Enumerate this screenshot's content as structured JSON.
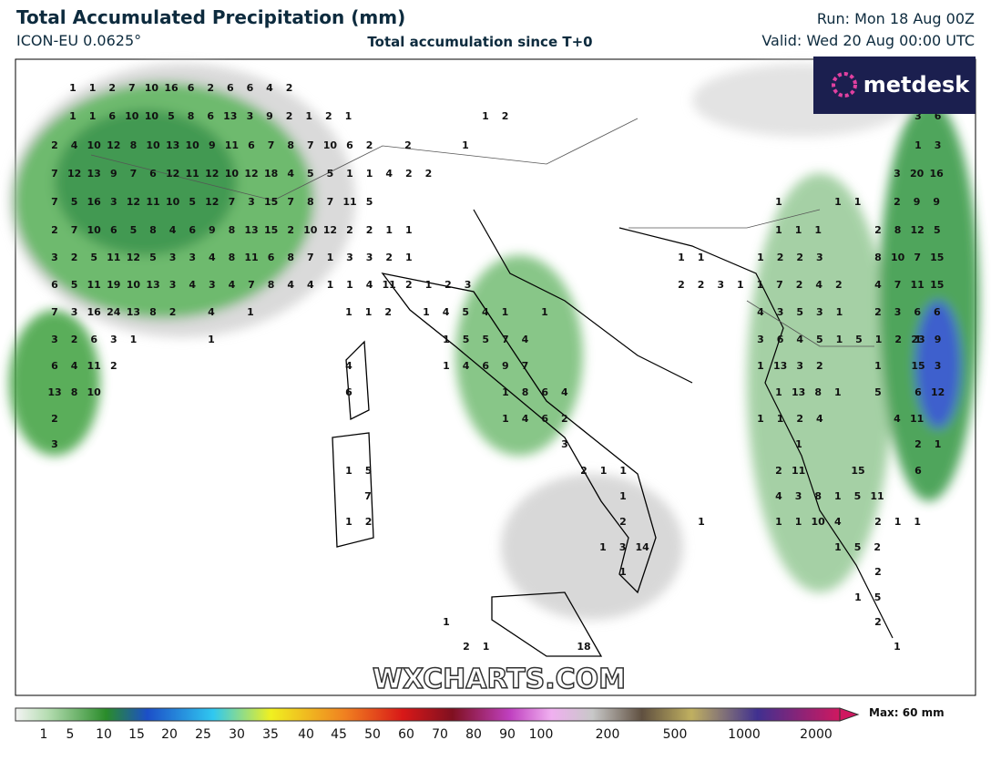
{
  "header": {
    "title": "Total Accumulated Precipitation (mm)",
    "model": "ICON-EU 0.0625°",
    "subtitle": "Total accumulation since T+0",
    "run": "Run: Mon 18 Aug 00Z",
    "valid": "Valid: Wed 20 Aug 00:00 UTC"
  },
  "logo": "metdesk",
  "watermark": "WXCHARTS.COM",
  "colorbar": {
    "ticks": [
      1,
      5,
      10,
      15,
      20,
      25,
      30,
      35,
      40,
      45,
      50,
      60,
      70,
      80,
      90,
      100,
      200,
      500,
      1000,
      2000
    ],
    "max_label": "Max: 60 mm"
  },
  "map_labels": [
    [
      1,
      1,
      2,
      7,
      10,
      16,
      6,
      2,
      6,
      6,
      4,
      2
    ],
    [
      1,
      1,
      6,
      10,
      10,
      5,
      8,
      6,
      13,
      3,
      9,
      2,
      1,
      2,
      1
    ],
    [
      1,
      2
    ],
    [
      3,
      6
    ],
    [
      2,
      4,
      10,
      12,
      8,
      10,
      13,
      10,
      9,
      11,
      6,
      7,
      8,
      7,
      10,
      6,
      2
    ],
    [
      2
    ],
    [
      1
    ],
    [
      1,
      3
    ],
    [
      7,
      12,
      13,
      9,
      7,
      6,
      12,
      11,
      12,
      10,
      12,
      18,
      4,
      5,
      5,
      1,
      1,
      4,
      2,
      2
    ],
    [
      3,
      20,
      16
    ],
    [
      7,
      5,
      16,
      3,
      12,
      11,
      10,
      5,
      12,
      7,
      3,
      15,
      7,
      8,
      7,
      11,
      5
    ],
    [
      1
    ],
    [
      1,
      1
    ],
    [
      2,
      9,
      9
    ],
    [
      2,
      7,
      10,
      6,
      5,
      8,
      4,
      6,
      9,
      8,
      13,
      15,
      2,
      10,
      12,
      2,
      2,
      1,
      1
    ],
    [
      1,
      1,
      1
    ],
    [
      2,
      8,
      12,
      5
    ],
    [
      3,
      2,
      5,
      11,
      12,
      5,
      3,
      3,
      4,
      8,
      11,
      6,
      8,
      7,
      1,
      3,
      3,
      2,
      1
    ],
    [
      1,
      1
    ],
    [
      1,
      2,
      2,
      3
    ],
    [
      8,
      10,
      7,
      15
    ],
    [
      6,
      5,
      11,
      19,
      10,
      13,
      3,
      4,
      3,
      4,
      7,
      8,
      4,
      4,
      1,
      1,
      4,
      11,
      2,
      1,
      2,
      3
    ],
    [
      2,
      2,
      3,
      1,
      1,
      7,
      2,
      4,
      2
    ],
    [
      4,
      7,
      11,
      15
    ],
    [
      7,
      3,
      16,
      24,
      13,
      8,
      2
    ],
    [
      4
    ],
    [
      1
    ],
    [
      1,
      1,
      2
    ],
    [
      1,
      4,
      5,
      4,
      1
    ],
    [
      1
    ],
    [
      4,
      3,
      5,
      3,
      1
    ],
    [
      2,
      3,
      6,
      6
    ],
    [
      3,
      2,
      6,
      3,
      1
    ],
    [
      1
    ],
    [
      1,
      5,
      5,
      7,
      4
    ],
    [
      3,
      6,
      4,
      5,
      1,
      5,
      1,
      2,
      1
    ],
    [
      23,
      9
    ],
    [
      6,
      4,
      11,
      2
    ],
    [
      4
    ],
    [
      1,
      4,
      6,
      9,
      7
    ],
    [
      1,
      13,
      3,
      2
    ],
    [
      1
    ],
    [
      15,
      3
    ],
    [
      13,
      8,
      10
    ],
    [
      6
    ],
    [
      1,
      8,
      6,
      4
    ],
    [
      1,
      13,
      8,
      1
    ],
    [
      5
    ],
    [
      6,
      12
    ],
    [
      2
    ],
    [
      1,
      4,
      6,
      2
    ],
    [
      1,
      1,
      2,
      4
    ],
    [
      4,
      11
    ],
    [
      3
    ],
    [
      3
    ],
    [
      1
    ],
    [
      2,
      1
    ],
    [
      1,
      5
    ],
    [
      2,
      1,
      1
    ],
    [
      2,
      11
    ],
    [
      15
    ],
    [
      6
    ],
    [
      7
    ],
    [
      1
    ],
    [
      4,
      3,
      8,
      1,
      5,
      11
    ],
    [
      1,
      2
    ],
    [
      2
    ],
    [
      1
    ],
    [
      1,
      1,
      10,
      4
    ],
    [
      2,
      1,
      1
    ],
    [
      1,
      3,
      14
    ],
    [
      1,
      5,
      2
    ],
    [
      1
    ],
    [
      2
    ],
    [
      1,
      5
    ],
    [
      1
    ],
    [
      2
    ],
    [
      2,
      1
    ],
    [
      18
    ],
    [
      1
    ]
  ]
}
